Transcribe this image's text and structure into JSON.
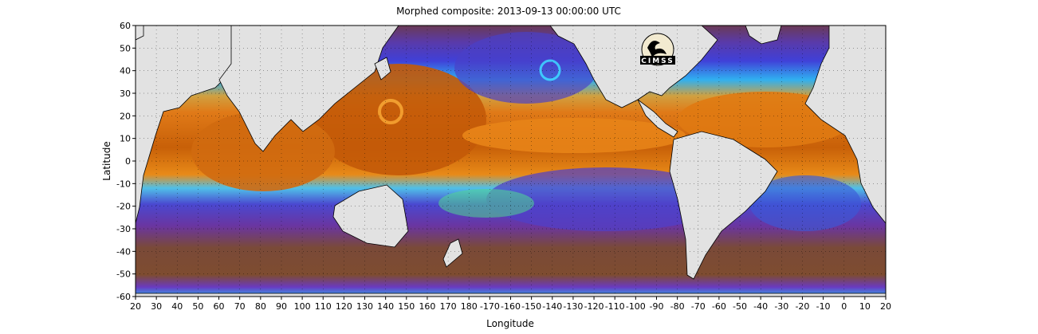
{
  "title": "Morphed composite: 2013-09-13 00:00:00 UTC",
  "xlabel": "Longitude",
  "ylabel": "Latitude",
  "logo_text": "CIMSS",
  "x_ticks": [
    "20",
    "30",
    "40",
    "50",
    "60",
    "70",
    "80",
    "90",
    "100",
    "110",
    "120",
    "130",
    "140",
    "150",
    "160",
    "170",
    "180",
    "-170",
    "-160",
    "-150",
    "-140",
    "-130",
    "-120",
    "-110",
    "-100",
    "-90",
    "-80",
    "-70",
    "-60",
    "-50",
    "-40",
    "-30",
    "-20",
    "-10",
    "0",
    "10",
    "20"
  ],
  "y_ticks": [
    "60",
    "50",
    "40",
    "30",
    "20",
    "10",
    "0",
    "-10",
    "-20",
    "-30",
    "-40",
    "-50",
    "-60"
  ],
  "x_range": [
    20,
    380
  ],
  "y_range": [
    -60,
    60
  ],
  "grid": "dotted",
  "land_color": "#e2e2e2",
  "colormap": [
    "#7a4a30",
    "#6a2f7a",
    "#3a3fd0",
    "#20a8ff",
    "#40e8a0",
    "#d8f040",
    "#f0a020",
    "#c85a08"
  ]
}
